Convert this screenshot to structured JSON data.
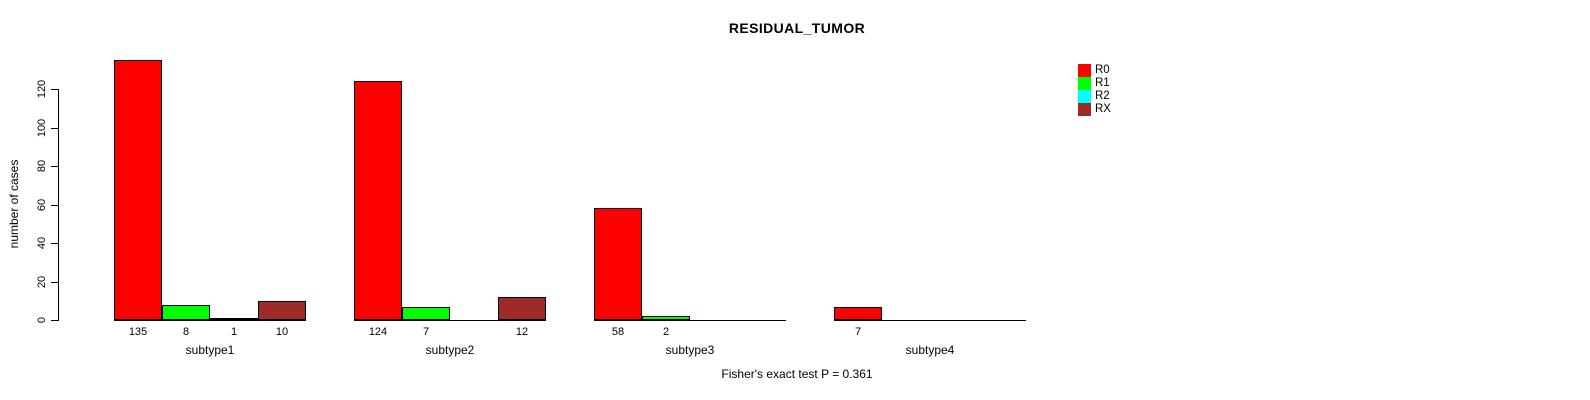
{
  "chart_data": {
    "type": "bar",
    "title": "RESIDUAL_TUMOR",
    "ylabel": "number of cases",
    "xlabel": "",
    "ylim": [
      0,
      120
    ],
    "yticks": [
      0,
      20,
      40,
      60,
      80,
      100,
      120
    ],
    "grid": false,
    "legend_position": "top-right",
    "categories": [
      "subtype1",
      "subtype2",
      "subtype3",
      "subtype4"
    ],
    "series": [
      {
        "name": "R0",
        "color": "#ff0000",
        "values": [
          135,
          124,
          58,
          7
        ]
      },
      {
        "name": "R1",
        "color": "#00ff00",
        "values": [
          8,
          7,
          2,
          null
        ]
      },
      {
        "name": "R2",
        "color": "#00ffff",
        "values": [
          1,
          null,
          null,
          null
        ]
      },
      {
        "name": "RX",
        "color": "#9e2a2a",
        "values": [
          10,
          12,
          null,
          null
        ]
      }
    ],
    "caption": "Fisher's exact test P = 0.361",
    "axis_color": "#000000",
    "text_color": "#000000"
  }
}
